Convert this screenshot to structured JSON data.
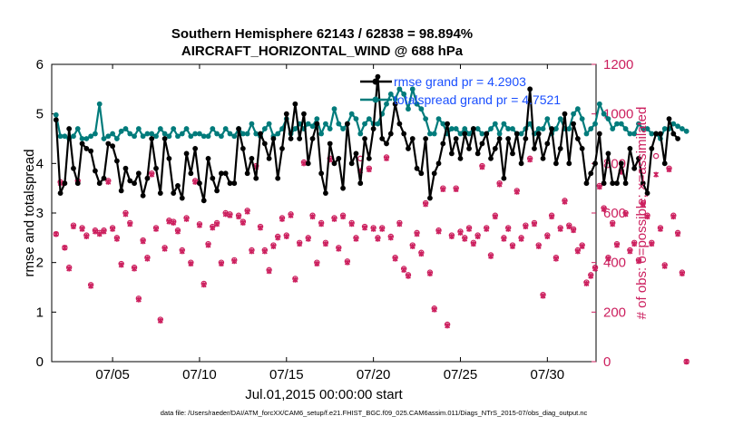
{
  "colors": {
    "rmse": "#000000",
    "spread": "#007b7b",
    "obs": "#cc1f5e",
    "legend_text": "#1a4fff",
    "axis": "#000000"
  },
  "chart_data": {
    "type": "line",
    "title": "Southern Hemisphere 62143 / 62838 = 98.894%",
    "subtitle": "AIRCRAFT_HORIZONTAL_WIND @ 688 hPa",
    "xlabel": "Jul.01,2015 00:00:00 start",
    "ylabel": "rmse and totalspread",
    "ylabel_right": "# of obs: o=possible; ×=assimilated",
    "footnote": "data file: /Users/raeder/DAI/ATM_forcXX/CAM6_setup/f.e21.FHIST_BGC.f09_025.CAM6assim.011/Diags_NTrS_2015-07/obs_diag_output.nc",
    "xlim": [
      0.5,
      31.8
    ],
    "ylim": [
      0,
      6
    ],
    "ylim_right": [
      0,
      1200
    ],
    "x_ticks": [
      4,
      9,
      14,
      19,
      24,
      29
    ],
    "x_tick_labels": [
      "07/05",
      "07/10",
      "07/15",
      "07/20",
      "07/25",
      "07/30"
    ],
    "y_ticks": [
      0,
      1,
      2,
      3,
      4,
      5,
      6
    ],
    "y_ticks_right": [
      0,
      200,
      400,
      600,
      800,
      1000,
      1200
    ],
    "grid": false,
    "legend_position": "top-right",
    "x_start": 0.75,
    "x_step": 0.25,
    "series": [
      {
        "name": "rmse grand pr = 4.2903",
        "axis": "left",
        "values": [
          4.88,
          3.4,
          3.6,
          4.7,
          3.9,
          3.6,
          4.4,
          4.3,
          4.25,
          3.85,
          3.6,
          3.7,
          4.4,
          4.35,
          4.05,
          3.45,
          3.9,
          3.65,
          3.6,
          3.8,
          3.35,
          3.7,
          4.5,
          3.9,
          3.4,
          4.5,
          4.1,
          3.4,
          3.55,
          3.3,
          4.2,
          3.8,
          4.3,
          3.6,
          3.25,
          4.1,
          3.7,
          3.45,
          3.8,
          3.8,
          3.6,
          3.6,
          4.7,
          4.3,
          3.8,
          4.1,
          3.7,
          4.6,
          4.4,
          4.1,
          4.5,
          3.7,
          4.3,
          5.0,
          4.5,
          5.2,
          4.5,
          5.0,
          4.0,
          4.5,
          4.8,
          3.8,
          3.4,
          4.4,
          4.0,
          4.1,
          3.5,
          4.8,
          4.0,
          4.2,
          3.6,
          4.5,
          4.1,
          4.7,
          5.75,
          4.5,
          4.4,
          4.6,
          5.2,
          4.8,
          4.6,
          4.3,
          4.5,
          3.9,
          3.8,
          4.5,
          3.3,
          3.8,
          4.0,
          4.4,
          4.8,
          4.2,
          4.5,
          4.1,
          4.6,
          4.3,
          4.7,
          4.2,
          4.4,
          4.6,
          4.1,
          4.3,
          4.5,
          3.7,
          4.5,
          4.2,
          4.6,
          4.0,
          4.5,
          5.5,
          4.3,
          4.6,
          4.1,
          4.4,
          4.7,
          4.0,
          4.3,
          5.0,
          4.0,
          4.8,
          4.5,
          4.3,
          3.6,
          3.8,
          4.0,
          4.6,
          3.6,
          4.2,
          3.6,
          3.6,
          4.0,
          3.6,
          4.3,
          3.9,
          4.1,
          3.6,
          3.4,
          4.3,
          4.6,
          4.6,
          4.0,
          4.9,
          4.6,
          4.5
        ]
      },
      {
        "name": "totalspread grand pr = 4.7521",
        "axis": "left",
        "values": [
          4.98,
          4.55,
          4.55,
          4.5,
          4.55,
          4.7,
          4.5,
          4.5,
          4.55,
          4.6,
          5.2,
          4.5,
          4.55,
          4.6,
          4.5,
          4.65,
          4.7,
          4.6,
          4.55,
          4.7,
          4.55,
          4.6,
          4.6,
          4.55,
          4.7,
          4.6,
          4.55,
          4.7,
          4.55,
          4.6,
          4.7,
          4.55,
          4.6,
          4.6,
          4.55,
          4.55,
          4.7,
          4.6,
          4.55,
          4.7,
          4.6,
          4.55,
          4.7,
          4.6,
          4.6,
          4.8,
          4.6,
          4.55,
          4.7,
          4.8,
          4.55,
          4.6,
          4.7,
          4.9,
          4.6,
          4.7,
          4.8,
          4.7,
          4.8,
          4.75,
          4.9,
          4.6,
          4.8,
          4.7,
          5.1,
          4.8,
          4.7,
          4.8,
          5.0,
          4.9,
          4.6,
          4.8,
          4.9,
          4.8,
          4.8,
          5.0,
          5.2,
          5.4,
          5.3,
          5.5,
          5.4,
          5.1,
          5.5,
          5.2,
          5.1,
          4.9,
          4.6,
          4.6,
          4.9,
          4.8,
          4.6,
          4.7,
          4.7,
          4.6,
          4.7,
          4.6,
          4.7,
          4.7,
          4.6,
          4.6,
          4.7,
          4.8,
          4.6,
          4.8,
          4.7,
          4.7,
          4.6,
          4.6,
          4.7,
          4.8,
          4.6,
          4.7,
          4.7,
          4.9,
          4.6,
          4.7,
          4.9,
          4.7,
          4.7,
          5.0,
          5.1,
          4.9,
          4.6,
          4.7,
          4.8,
          5.2,
          5.0,
          4.9,
          4.7,
          4.8,
          4.8,
          4.7,
          4.6,
          4.6,
          4.8,
          4.7,
          4.7,
          4.6,
          4.6,
          4.5,
          4.7,
          4.7,
          4.8,
          4.75,
          4.7,
          4.65
        ]
      },
      {
        "name": "obs possible",
        "axis": "right",
        "marker": "o",
        "values": [
          515,
          725,
          460,
          380,
          550,
          730,
          540,
          510,
          310,
          530,
          520,
          530,
          730,
          540,
          500,
          395,
          600,
          560,
          380,
          255,
          490,
          420,
          760,
          540,
          170,
          460,
          570,
          565,
          530,
          450,
          580,
          400,
          730,
          555,
          315,
          475,
          545,
          560,
          400,
          600,
          595,
          410,
          590,
          565,
          610,
          450,
          790,
          545,
          450,
          370,
          470,
          505,
          580,
          510,
          595,
          335,
          480,
          805,
          500,
          590,
          400,
          560,
          480,
          820,
          580,
          460,
          590,
          405,
          560,
          500,
          820,
          545,
          780,
          540,
          500,
          540,
          825,
          505,
          420,
          560,
          375,
          350,
          470,
          520,
          440,
          640,
          360,
          215,
          530,
          700,
          150,
          510,
          700,
          525,
          500,
          540,
          480,
          510,
          790,
          540,
          430,
          590,
          720,
          500,
          540,
          470,
          690,
          500,
          550,
          820,
          560,
          470,
          270,
          510,
          590,
          420,
          540,
          650,
          550,
          535,
          450,
          470,
          320,
          350,
          380,
          710,
          620,
          420,
          560,
          475,
          770,
          600,
          450,
          480,
          410,
          640,
          590,
          480,
          830,
          540,
          390,
          780,
          590,
          520,
          360,
          0
        ]
      },
      {
        "name": "obs assimilated",
        "axis": "right",
        "marker": "x",
        "values": [
          515,
          720,
          460,
          375,
          545,
          725,
          535,
          505,
          305,
          525,
          515,
          525,
          725,
          535,
          495,
          390,
          595,
          555,
          375,
          250,
          485,
          415,
          755,
          535,
          165,
          455,
          565,
          560,
          525,
          445,
          575,
          395,
          725,
          550,
          310,
          470,
          540,
          555,
          395,
          595,
          590,
          405,
          585,
          560,
          605,
          445,
          785,
          540,
          445,
          365,
          465,
          500,
          575,
          505,
          590,
          330,
          475,
          800,
          495,
          585,
          395,
          555,
          475,
          815,
          575,
          455,
          585,
          400,
          555,
          495,
          770,
          540,
          775,
          535,
          495,
          535,
          820,
          500,
          415,
          555,
          370,
          345,
          465,
          515,
          435,
          635,
          355,
          210,
          525,
          695,
          145,
          505,
          695,
          520,
          495,
          535,
          475,
          505,
          785,
          535,
          425,
          585,
          715,
          495,
          535,
          465,
          685,
          495,
          545,
          815,
          555,
          465,
          265,
          505,
          585,
          415,
          535,
          645,
          545,
          530,
          445,
          465,
          315,
          345,
          375,
          705,
          615,
          415,
          555,
          470,
          765,
          595,
          445,
          475,
          405,
          635,
          585,
          475,
          755,
          535,
          385,
          775,
          585,
          515,
          355,
          0
        ]
      }
    ]
  }
}
